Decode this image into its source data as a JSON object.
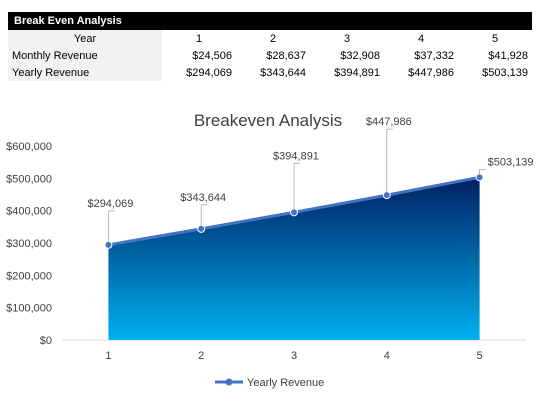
{
  "sheet": {
    "title": "Break Even Analysis",
    "header_label": "Year",
    "years": [
      "1",
      "2",
      "3",
      "4",
      "5"
    ],
    "rows": [
      {
        "label": "Monthly Revenue",
        "values": [
          "$24,506",
          "$28,637",
          "$32,908",
          "$37,332",
          "$41,928"
        ]
      },
      {
        "label": "Yearly Revenue",
        "values": [
          "$294,069",
          "$343,644",
          "$394,891",
          "$447,986",
          "$503,139"
        ]
      }
    ]
  },
  "chart_data": {
    "type": "area",
    "title": "Breakeven Analysis",
    "x": [
      1,
      2,
      3,
      4,
      5
    ],
    "series": [
      {
        "name": "Yearly Revenue",
        "values": [
          294069,
          343644,
          394891,
          447986,
          503139
        ],
        "labels": [
          "$294,069",
          "$343,644",
          "$394,891",
          "$447,986",
          "$503,139"
        ]
      }
    ],
    "ylim": [
      0,
      600000
    ],
    "yticks": [
      "$0",
      "$100,000",
      "$200,000",
      "$300,000",
      "$400,000",
      "$500,000",
      "$600,000"
    ],
    "xticks": [
      "1",
      "2",
      "3",
      "4",
      "5"
    ],
    "legend_position": "bottom",
    "grid": false,
    "colors": {
      "line": "#4472c4",
      "fill_top": "#002060",
      "fill_bottom": "#00b0f0"
    }
  }
}
